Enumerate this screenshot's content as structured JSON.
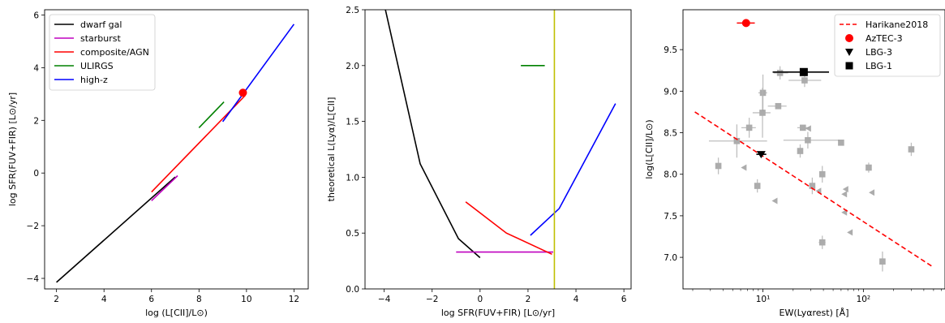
{
  "chart_data": [
    {
      "type": "line",
      "panel": "left",
      "xlabel": "log (L[CII]/L⊙)",
      "ylabel": "log SFR(FUV+FIR) [L⊙/yr]",
      "xlim": [
        1.5,
        12.6
      ],
      "ylim": [
        -4.4,
        6.2
      ],
      "xticks": [
        2,
        4,
        6,
        8,
        10,
        12
      ],
      "yticks": [
        -4,
        -2,
        0,
        2,
        4,
        6
      ],
      "legend_position": "top-left",
      "series": [
        {
          "name": "dwarf gal",
          "color": "#000000",
          "x": [
            2.0,
            7.0
          ],
          "y": [
            -4.15,
            -0.15
          ]
        },
        {
          "name": "starburst",
          "color": "#bf00bf",
          "x": [
            6.0,
            7.1
          ],
          "y": [
            -1.05,
            -0.1
          ]
        },
        {
          "name": "composite/AGN",
          "color": "#ff0000",
          "x": [
            6.0,
            9.95
          ],
          "y": [
            -0.72,
            2.95
          ]
        },
        {
          "name": "ULIRGS",
          "color": "#008000",
          "x": [
            8.0,
            9.05
          ],
          "y": [
            1.72,
            2.7
          ]
        },
        {
          "name": "high-z",
          "color": "#0000ff",
          "x": [
            9.0,
            12.0
          ],
          "y": [
            1.95,
            5.65
          ]
        }
      ],
      "points": [
        {
          "color": "#ff0000",
          "x": 9.85,
          "y": 3.05
        }
      ]
    },
    {
      "type": "line",
      "panel": "middle",
      "xlabel": "log SFR(FUV+FIR) [L⊙/yr]",
      "ylabel": "theoretical L(Lyα)/L[CII]",
      "xlim": [
        -4.8,
        6.3
      ],
      "ylim": [
        0.0,
        2.5
      ],
      "xticks": [
        -4,
        -2,
        0,
        2,
        4,
        6
      ],
      "yticks": [
        0.0,
        0.5,
        1.0,
        1.5,
        2.0,
        2.5
      ],
      "series": [
        {
          "color": "#000000",
          "x": [
            -4.0,
            -2.5,
            -0.9,
            0.0
          ],
          "y": [
            2.55,
            1.12,
            0.45,
            0.28
          ]
        },
        {
          "color": "#bf00bf",
          "x": [
            -1.0,
            3.05
          ],
          "y": [
            0.33,
            0.33
          ]
        },
        {
          "color": "#ff0000",
          "x": [
            -0.6,
            1.1,
            3.0
          ],
          "y": [
            0.78,
            0.5,
            0.31
          ]
        },
        {
          "color": "#008000",
          "x": [
            1.7,
            2.7
          ],
          "y": [
            2.0,
            2.0
          ]
        },
        {
          "color": "#0000ff",
          "x": [
            2.1,
            3.3,
            5.65
          ],
          "y": [
            0.48,
            0.72,
            1.66
          ]
        }
      ],
      "vlines": [
        {
          "color": "#bfbf00",
          "x": 3.1
        }
      ]
    },
    {
      "type": "scatter",
      "panel": "right",
      "xlabel": "EW(Lyαrest) [Å]",
      "ylabel": "log(L[CII]/L⊙)",
      "xscale": "log",
      "xlim": [
        1.6,
        650
      ],
      "ylim": [
        6.62,
        9.98
      ],
      "xticks": [
        10,
        100
      ],
      "xtick_labels": [
        "10¹",
        "10²"
      ],
      "yticks": [
        7.0,
        7.5,
        8.0,
        8.5,
        9.0,
        9.5
      ],
      "legend_position": "top-right",
      "harikane": {
        "name": "Harikane2018",
        "color": "#ff0000",
        "x": [
          2.1,
          500
        ],
        "y": [
          8.75,
          6.88
        ]
      },
      "aztec3": {
        "name": "AzTEC-3",
        "color": "#ff0000",
        "x": 6.8,
        "y": 9.82,
        "xerr": [
          1.3,
          1.5
        ]
      },
      "lbg3": {
        "name": "LBG-3",
        "color": "#000000",
        "x": 9.6,
        "y": 8.24,
        "xerr": [
          1.0,
          1.2
        ]
      },
      "lbg1": {
        "name": "LBG-1",
        "color": "#000000",
        "x": 25.5,
        "y": 9.23,
        "xerr": [
          13,
          20
        ]
      },
      "gray_points": [
        {
          "x": 3.6,
          "y": 8.1,
          "m": "s",
          "yerr": 0.1
        },
        {
          "x": 5.5,
          "y": 8.4,
          "m": "s",
          "xerr": [
            2.6,
            5.5
          ],
          "yerr": 0.2
        },
        {
          "x": 6.5,
          "y": 8.08,
          "m": "<"
        },
        {
          "x": 7.3,
          "y": 8.56,
          "m": "s",
          "xerr": [
            1.2,
            1.2
          ],
          "yerr": 0.12
        },
        {
          "x": 8.8,
          "y": 7.86,
          "m": "s",
          "yerr": 0.08
        },
        {
          "x": 10.0,
          "y": 8.98,
          "m": "s",
          "xerr": [
            1.0,
            1.0
          ],
          "yerr": 0.22
        },
        {
          "x": 9.9,
          "y": 8.74,
          "m": "s",
          "xerr": [
            2.0,
            2.0
          ],
          "yerr": 0.3
        },
        {
          "x": 13.2,
          "y": 7.68,
          "m": "<"
        },
        {
          "x": 14.2,
          "y": 8.82,
          "m": "s",
          "xerr": [
            3.0,
            3.0
          ]
        },
        {
          "x": 14.8,
          "y": 9.22,
          "m": "s",
          "xerr": [
            2.0,
            3.0
          ],
          "yerr": 0.08
        },
        {
          "x": 23.5,
          "y": 8.28,
          "m": "s",
          "yerr": 0.08
        },
        {
          "x": 25.0,
          "y": 8.56,
          "m": "s",
          "xerr": [
            3.0,
            4.0
          ]
        },
        {
          "x": 26.0,
          "y": 9.13,
          "m": "s",
          "xerr": [
            8.0,
            12.0
          ],
          "yerr": 0.08
        },
        {
          "x": 28.5,
          "y": 8.55,
          "m": "<"
        },
        {
          "x": 28.0,
          "y": 8.41,
          "m": "s",
          "xerr": [
            12,
            30
          ],
          "yerr": 0.1
        },
        {
          "x": 31.0,
          "y": 7.86,
          "m": "s",
          "yerr": 0.1
        },
        {
          "x": 36.0,
          "y": 7.8,
          "m": "<"
        },
        {
          "x": 39.0,
          "y": 8.0,
          "m": "s",
          "yerr": 0.1
        },
        {
          "x": 39.0,
          "y": 7.18,
          "m": "s",
          "xerr": [
            3.0,
            3.0
          ],
          "yerr": 0.08
        },
        {
          "x": 60.0,
          "y": 8.38,
          "m": "s",
          "xerr": [
            3.0,
            3.0
          ]
        },
        {
          "x": 65.0,
          "y": 7.76,
          "m": "<"
        },
        {
          "x": 67.0,
          "y": 7.82,
          "m": "<"
        },
        {
          "x": 65.0,
          "y": 7.54,
          "m": "<"
        },
        {
          "x": 74.0,
          "y": 7.3,
          "m": "<"
        },
        {
          "x": 113.0,
          "y": 8.08,
          "m": "s",
          "yerr": 0.06
        },
        {
          "x": 122.0,
          "y": 7.78,
          "m": "<"
        },
        {
          "x": 155.0,
          "y": 6.95,
          "m": "s",
          "yerr": 0.12
        },
        {
          "x": 300.0,
          "y": 8.3,
          "m": "s",
          "yerr": 0.08
        }
      ]
    }
  ]
}
